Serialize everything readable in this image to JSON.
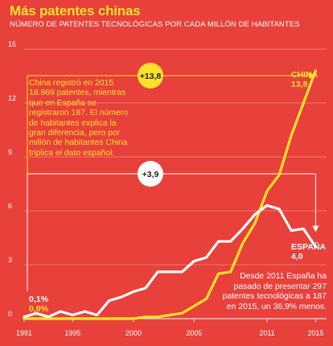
{
  "title": "Más patentes chinas",
  "subtitle": "NÚMERO DE PATENTES TECNOLÓGICAS POR CADA MILLÓN DE HABITANTES",
  "annotations": {
    "china_note": "China registró en 2015 18.969 patentes, mientras que en España se registraron 187. El número de habitantes explica la gran diferencia, pero por millón de habitantes China triplica el dato español.",
    "spain_note": "Desde 2011 España ha pasado de presentar 297 patentes tecnológicas a 187 en 2015, un 36,9% menos.",
    "china_delta": "+13,8",
    "spain_delta": "+3,9",
    "china_start": "0,0%",
    "spain_start": "0,1%"
  },
  "colors": {
    "background": "#e8403a",
    "china": "#fbe12b",
    "spain": "#ffffff"
  },
  "chart_data": {
    "type": "line",
    "title": "Más patentes chinas",
    "subtitle": "NÚMERO DE PATENTES TECNOLÓGICAS POR CADA MILLÓN DE HABITANTES",
    "x": [
      1991,
      1992,
      1993,
      1994,
      1995,
      1996,
      1997,
      1998,
      1999,
      2000,
      2001,
      2002,
      2003,
      2004,
      2005,
      2006,
      2007,
      2008,
      2009,
      2010,
      2011,
      2012,
      2013,
      2014,
      2015
    ],
    "xticks": [
      1991,
      1995,
      2000,
      2005,
      2011,
      2015
    ],
    "yticks": [
      0,
      3,
      6,
      9,
      12,
      15
    ],
    "ylim": [
      0,
      15
    ],
    "xlim": [
      1991,
      2015.9
    ],
    "grid": true,
    "series": [
      {
        "name": "CHINA",
        "end_value": "13,8",
        "values": [
          0.0,
          0.0,
          0.0,
          0.0,
          0.0,
          0.0,
          0.0,
          0.0,
          0.0,
          0.0,
          0.1,
          0.1,
          0.2,
          0.3,
          0.7,
          1.1,
          2.5,
          2.6,
          4.2,
          5.3,
          7.1,
          8.0,
          10.2,
          12.0,
          13.8
        ]
      },
      {
        "name": "ESPAÑA",
        "end_value": "4,0",
        "values": [
          0.1,
          0.3,
          0.1,
          0.4,
          0.2,
          0.4,
          0.2,
          1.0,
          1.2,
          1.5,
          1.7,
          2.6,
          2.6,
          2.6,
          3.2,
          3.4,
          4.3,
          4.3,
          5.0,
          5.8,
          6.3,
          6.1,
          4.9,
          5.0,
          4.0
        ]
      }
    ]
  }
}
